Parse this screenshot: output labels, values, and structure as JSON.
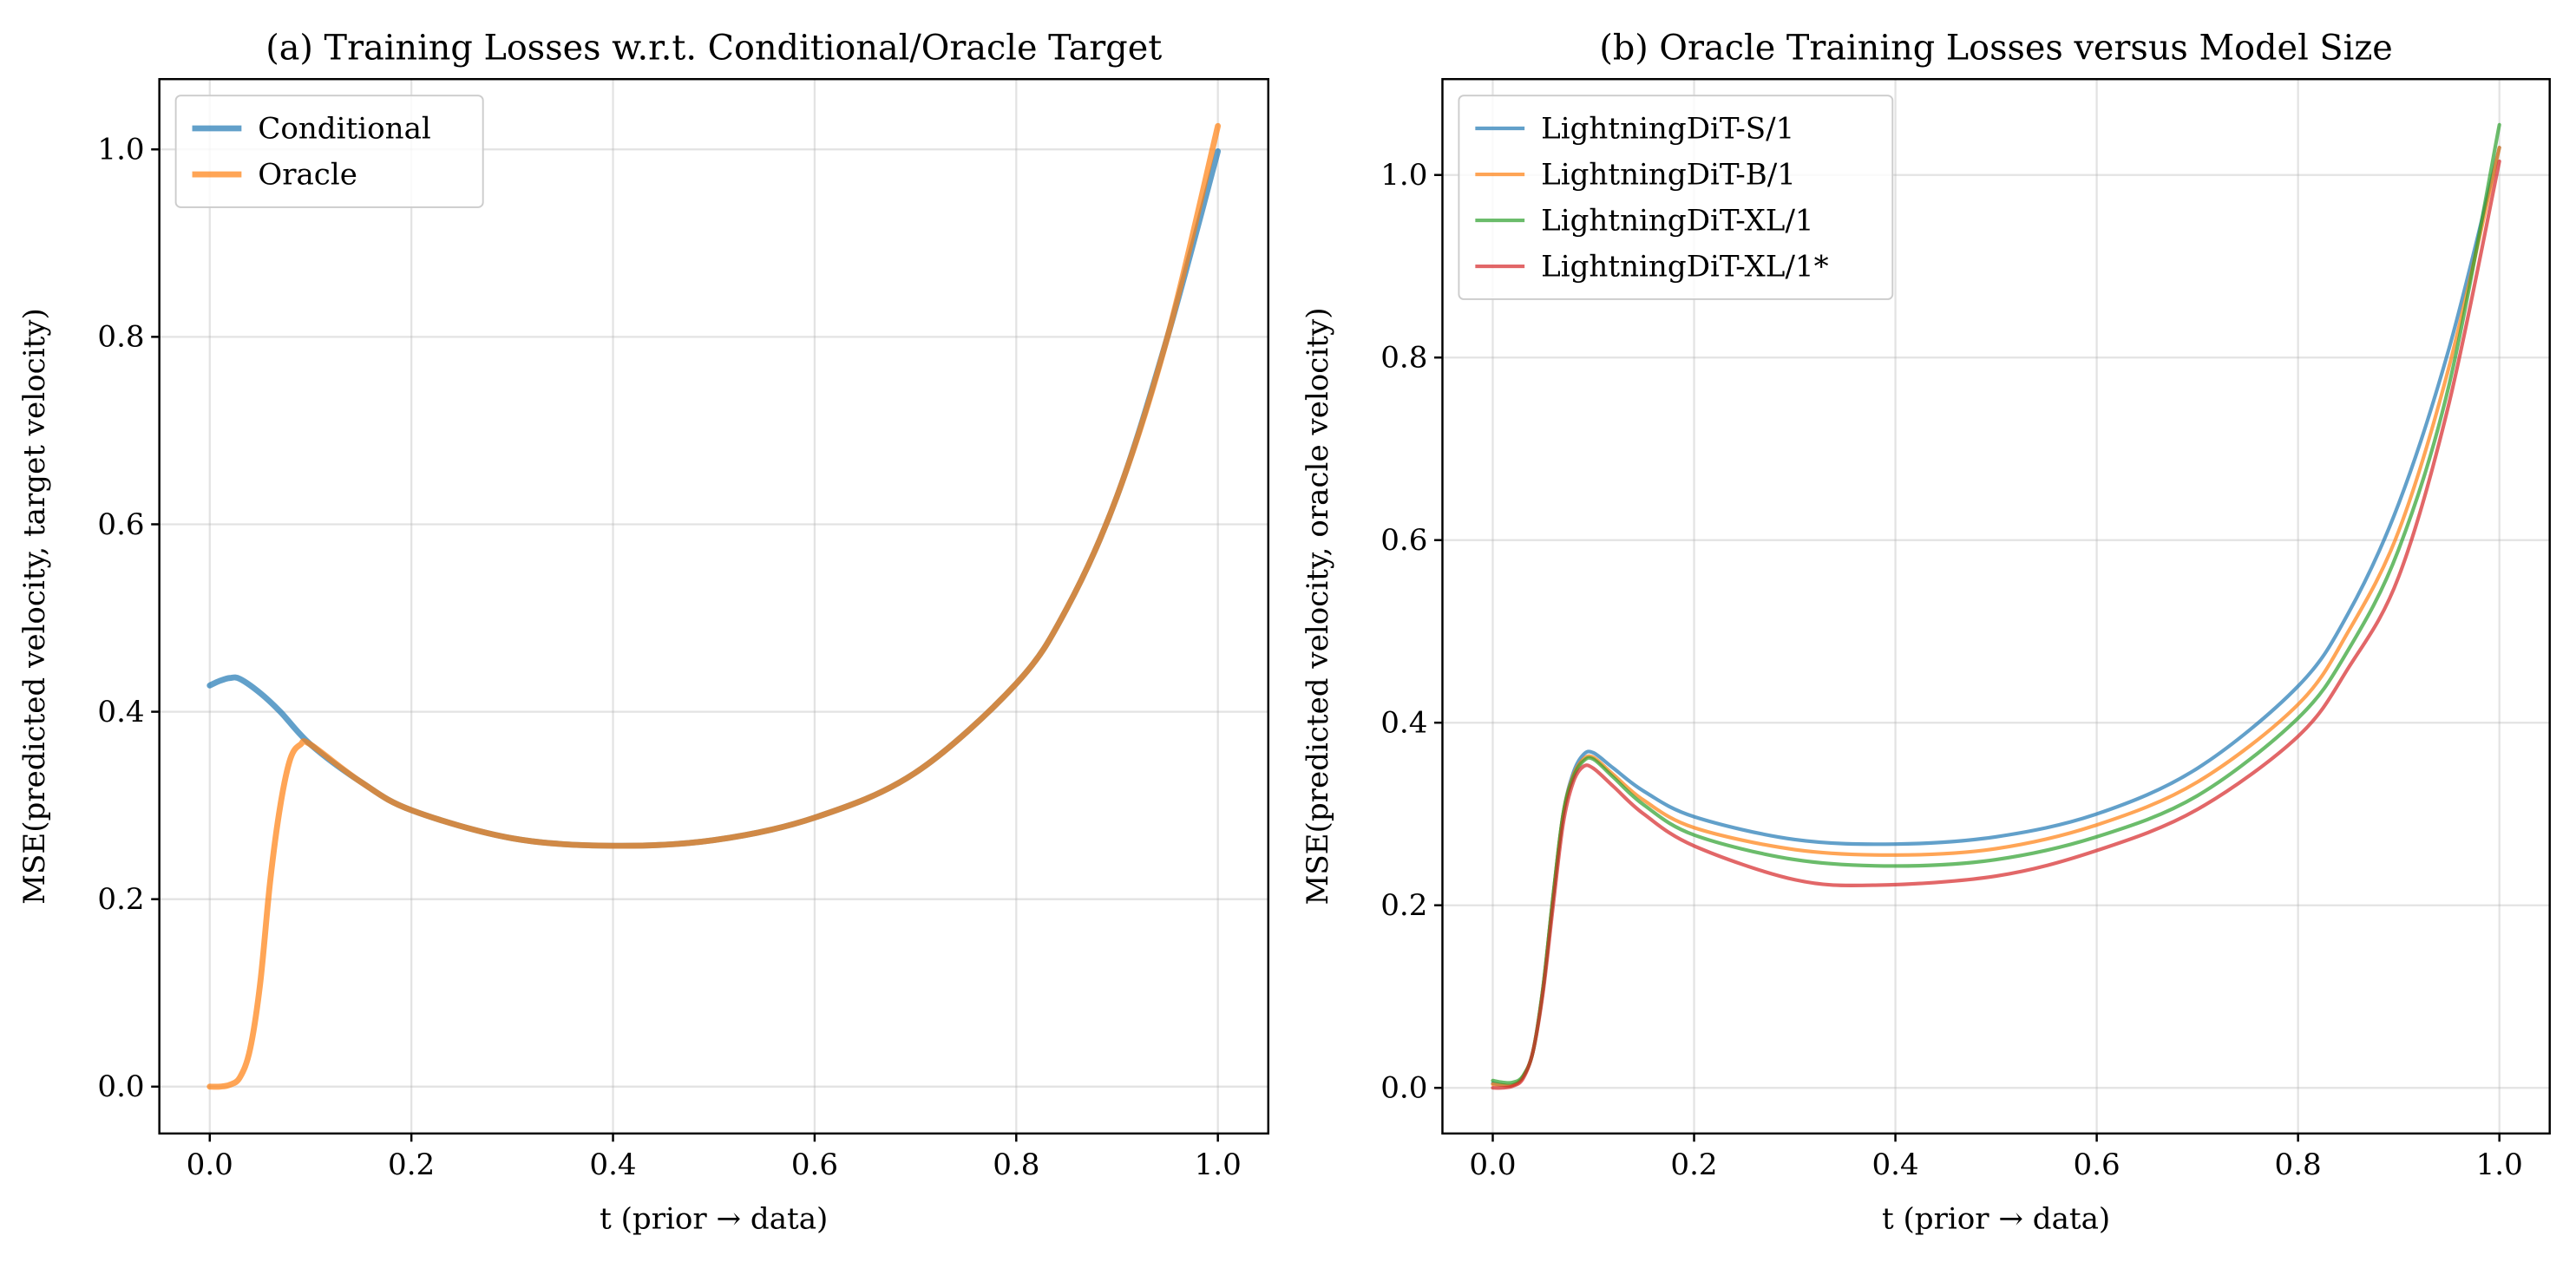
{
  "chart_data": [
    {
      "type": "line",
      "title": "(a) Training Losses w.r.t. Conditional/Oracle Target",
      "xlabel": "t (prior → data)",
      "ylabel": "MSE(predicted velocity, target velocity)",
      "xlim": [
        -0.05,
        1.05
      ],
      "ylim": [
        -0.05,
        1.075
      ],
      "xticks": [
        "0.0",
        "0.2",
        "0.4",
        "0.6",
        "0.8",
        "1.0"
      ],
      "yticks": [
        "0.0",
        "0.2",
        "0.4",
        "0.6",
        "0.8",
        "1.0"
      ],
      "grid": true,
      "legend": "top-left",
      "line_width": "thick",
      "series": [
        {
          "name": "Conditional",
          "color": "#1f77b4",
          "x": [
            0,
            0.01,
            0.02,
            0.03,
            0.05,
            0.07,
            0.1,
            0.15,
            0.2,
            0.3,
            0.4,
            0.5,
            0.6,
            0.7,
            0.8,
            0.85,
            0.9,
            0.95,
            1.0
          ],
          "y": [
            0.428,
            0.433,
            0.436,
            0.435,
            0.42,
            0.4,
            0.365,
            0.325,
            0.295,
            0.265,
            0.257,
            0.263,
            0.287,
            0.335,
            0.43,
            0.51,
            0.63,
            0.8,
            0.998
          ]
        },
        {
          "name": "Oracle",
          "color": "#ff7f0e",
          "x": [
            0,
            0.01,
            0.02,
            0.03,
            0.04,
            0.05,
            0.06,
            0.07,
            0.08,
            0.09,
            0.1,
            0.15,
            0.2,
            0.3,
            0.4,
            0.5,
            0.6,
            0.7,
            0.8,
            0.85,
            0.9,
            0.95,
            1.0
          ],
          "y": [
            0.0,
            0.0,
            0.002,
            0.01,
            0.04,
            0.11,
            0.22,
            0.3,
            0.35,
            0.365,
            0.365,
            0.325,
            0.295,
            0.265,
            0.257,
            0.263,
            0.287,
            0.335,
            0.43,
            0.51,
            0.63,
            0.8,
            1.025
          ]
        }
      ]
    },
    {
      "type": "line",
      "title": "(b) Oracle Training Losses versus Model Size",
      "xlabel": "t (prior → data)",
      "ylabel": "MSE(predicted velocity, oracle velocity)",
      "xlim": [
        -0.05,
        1.05
      ],
      "ylim": [
        -0.05,
        1.105
      ],
      "xticks": [
        "0.0",
        "0.2",
        "0.4",
        "0.6",
        "0.8",
        "1.0"
      ],
      "yticks": [
        "0.0",
        "0.2",
        "0.4",
        "0.6",
        "0.8",
        "1.0"
      ],
      "grid": true,
      "legend": "top-left",
      "series": [
        {
          "name": "LightningDiT-S/1",
          "color": "#1f77b4",
          "x": [
            0,
            0.01,
            0.02,
            0.03,
            0.04,
            0.05,
            0.06,
            0.07,
            0.08,
            0.09,
            0.1,
            0.12,
            0.15,
            0.2,
            0.3,
            0.4,
            0.5,
            0.6,
            0.7,
            0.8,
            0.85,
            0.9,
            0.95,
            1.0
          ],
          "y": [
            0.005,
            0.003,
            0.003,
            0.012,
            0.04,
            0.11,
            0.21,
            0.3,
            0.345,
            0.365,
            0.367,
            0.35,
            0.325,
            0.297,
            0.272,
            0.267,
            0.275,
            0.3,
            0.35,
            0.44,
            0.52,
            0.64,
            0.81,
            1.03
          ]
        },
        {
          "name": "LightningDiT-B/1",
          "color": "#ff7f0e",
          "x": [
            0,
            0.01,
            0.02,
            0.03,
            0.04,
            0.05,
            0.06,
            0.07,
            0.08,
            0.09,
            0.1,
            0.12,
            0.15,
            0.2,
            0.3,
            0.4,
            0.5,
            0.6,
            0.7,
            0.8,
            0.85,
            0.9,
            0.95,
            1.0
          ],
          "y": [
            0.004,
            0.003,
            0.003,
            0.012,
            0.04,
            0.11,
            0.21,
            0.3,
            0.342,
            0.36,
            0.362,
            0.343,
            0.315,
            0.285,
            0.261,
            0.255,
            0.262,
            0.288,
            0.335,
            0.42,
            0.5,
            0.61,
            0.79,
            1.03
          ]
        },
        {
          "name": "LightningDiT-XL/1",
          "color": "#2ca02c",
          "x": [
            0,
            0.01,
            0.02,
            0.03,
            0.04,
            0.05,
            0.06,
            0.07,
            0.08,
            0.09,
            0.1,
            0.12,
            0.15,
            0.2,
            0.3,
            0.4,
            0.5,
            0.6,
            0.7,
            0.8,
            0.85,
            0.9,
            0.95,
            1.0
          ],
          "y": [
            0.008,
            0.006,
            0.006,
            0.013,
            0.04,
            0.11,
            0.21,
            0.3,
            0.34,
            0.358,
            0.36,
            0.34,
            0.31,
            0.277,
            0.25,
            0.243,
            0.25,
            0.275,
            0.32,
            0.405,
            0.48,
            0.59,
            0.77,
            1.055
          ]
        },
        {
          "name": "LightningDiT-XL/1*",
          "color": "#d62728",
          "x": [
            0,
            0.01,
            0.02,
            0.03,
            0.04,
            0.05,
            0.06,
            0.07,
            0.08,
            0.09,
            0.1,
            0.12,
            0.15,
            0.2,
            0.3,
            0.38,
            0.5,
            0.6,
            0.7,
            0.8,
            0.85,
            0.9,
            0.95,
            1.0
          ],
          "y": [
            0.0,
            0.0,
            0.002,
            0.01,
            0.04,
            0.105,
            0.2,
            0.29,
            0.335,
            0.352,
            0.35,
            0.33,
            0.3,
            0.265,
            0.228,
            0.222,
            0.232,
            0.26,
            0.305,
            0.385,
            0.46,
            0.56,
            0.75,
            1.015
          ]
        }
      ]
    }
  ]
}
